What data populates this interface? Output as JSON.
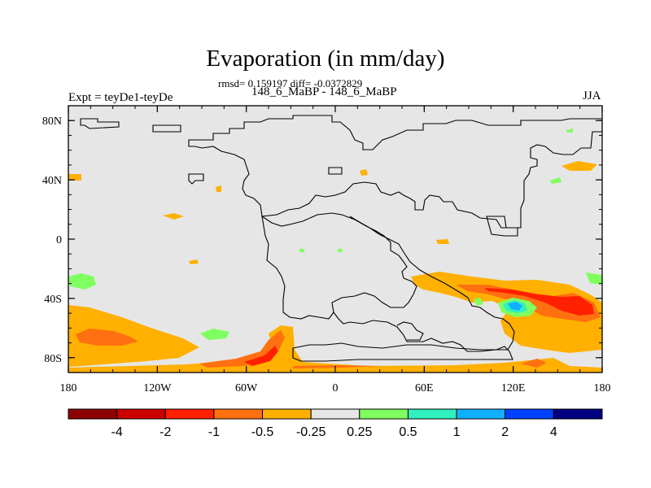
{
  "chart_data": {
    "type": "heatmap",
    "title": "Evaporation (in mm/day)",
    "stats_line": "rmsd= 0.159197 diff= -0.0372829",
    "case_line": "148_6_MaBP - 148_6_MaBP",
    "left_label": "Expt = teyDe1-teyDe",
    "right_label": "JJA",
    "xlim": [
      -180,
      180
    ],
    "ylim": [
      -90,
      90
    ],
    "x_ticks": [
      {
        "value": -180,
        "label": "180"
      },
      {
        "value": -120,
        "label": "120W"
      },
      {
        "value": -60,
        "label": "60W"
      },
      {
        "value": 0,
        "label": "0"
      },
      {
        "value": 60,
        "label": "60E"
      },
      {
        "value": 120,
        "label": "120E"
      },
      {
        "value": 180,
        "label": "180"
      }
    ],
    "y_ticks": [
      {
        "value": 80,
        "label": "80N"
      },
      {
        "value": 40,
        "label": "40N"
      },
      {
        "value": 0,
        "label": "0"
      },
      {
        "value": -40,
        "label": "40S"
      },
      {
        "value": -80,
        "label": "80S"
      }
    ],
    "colorbar": {
      "colors": [
        "#8b0000",
        "#cc0000",
        "#ff2000",
        "#ff7010",
        "#ffb000",
        "#e6e6e6",
        "#7fff60",
        "#30f0c0",
        "#10b0ff",
        "#0040ff",
        "#000080"
      ],
      "labels": [
        "-4",
        "-2",
        "-1",
        "-0.5",
        "-0.25",
        "0.25",
        "0.5",
        "1",
        "2",
        "4"
      ]
    },
    "background_color": "#e6e6e6",
    "anomaly_regions": [
      {
        "bin": "-0.5 to -0.25",
        "color": "#ffb000",
        "lon": -178,
        "lat": -82,
        "area": "South Pacific high latitudes"
      },
      {
        "bin": "-1 to -0.5",
        "color": "#ff7010",
        "lon": -160,
        "lat": -70,
        "area": "South Pacific"
      },
      {
        "bin": "-0.5 to -0.25",
        "color": "#ffb000",
        "lon": -40,
        "lat": -75,
        "area": "South Atlantic"
      },
      {
        "bin": "-1 to -0.5",
        "color": "#ff7010",
        "lon": -30,
        "lat": -80,
        "area": "South Atlantic"
      },
      {
        "bin": "-0.5 to -0.25",
        "color": "#ffb000",
        "lon": 100,
        "lat": -40,
        "area": "Southern Indian Ocean"
      },
      {
        "bin": "-2 to -1",
        "color": "#ff2000",
        "lon": 160,
        "lat": -43,
        "area": "Tasman Sea"
      },
      {
        "bin": "0.5 to 1",
        "color": "#30f0c0",
        "lon": 120,
        "lat": -44,
        "area": "South of Australia"
      },
      {
        "bin": "1 to 2",
        "color": "#10b0ff",
        "lon": 118,
        "lat": -44,
        "area": "South of Australia"
      },
      {
        "bin": "0.25 to 0.5",
        "color": "#7fff60",
        "lon": -165,
        "lat": -28,
        "area": "South Pacific"
      },
      {
        "bin": "0.25 to 0.5",
        "color": "#7fff60",
        "lon": -75,
        "lat": -65,
        "area": "South Pacific"
      },
      {
        "bin": "-0.5 to -0.25",
        "color": "#ffb000",
        "lon": 170,
        "lat": 48,
        "area": "North Pacific"
      },
      {
        "bin": "-0.5 to -0.25",
        "color": "#ffb000",
        "lon": -110,
        "lat": 15,
        "area": "Tropical Pacific"
      },
      {
        "bin": "-0.5 to -0.25",
        "color": "#ffb000",
        "lon": 70,
        "lat": 0,
        "area": "Indian Ocean"
      }
    ]
  }
}
